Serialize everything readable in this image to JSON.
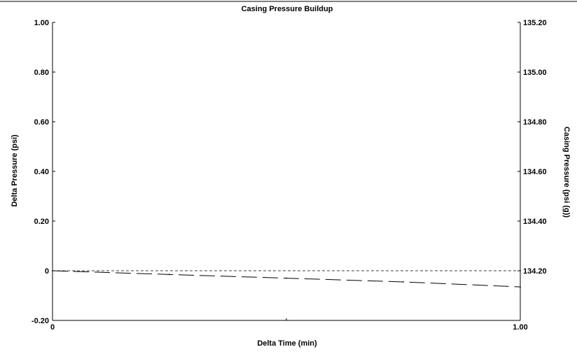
{
  "chart_data": {
    "type": "line",
    "title": "Casing Pressure Buildup",
    "xlabel": "Delta Time (min)",
    "ylabel": "Delta Pressure (psi)",
    "y2label": "Casing Pressure (psi (g))",
    "xlim": [
      0,
      1
    ],
    "ylim": [
      -0.2,
      1.0
    ],
    "y2lim": [
      134.0,
      135.2
    ],
    "x_ticks": [
      "0",
      "1.00"
    ],
    "y_ticks": [
      "-0.20",
      "0",
      "0.20",
      "0.40",
      "0.60",
      "0.80",
      "1.00"
    ],
    "y2_ticks": [
      "134.20",
      "134.40",
      "134.60",
      "134.80",
      "135.00",
      "135.20"
    ],
    "grid": false,
    "series": [
      {
        "axis": "left",
        "style": "short-dash",
        "x": [
          0,
          1.0
        ],
        "values": [
          0,
          0
        ]
      },
      {
        "axis": "left",
        "style": "long-dash",
        "x": [
          0,
          0.25,
          0.5,
          0.75,
          1.0
        ],
        "values": [
          0,
          -0.015,
          -0.03,
          -0.045,
          -0.065
        ]
      }
    ]
  },
  "colors": {
    "axis": "#000000",
    "line": "#000000",
    "background": "#ffffff"
  }
}
